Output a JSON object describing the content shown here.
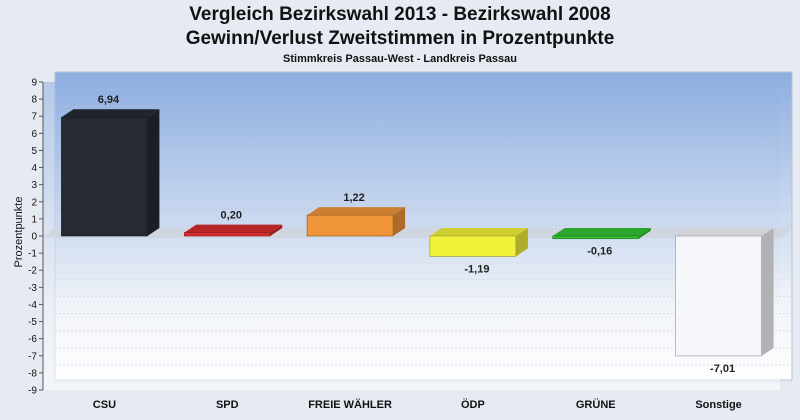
{
  "chart_data": {
    "type": "bar",
    "title": "Vergleich Bezirkswahl 2013 - Bezirkswahl 2008",
    "subtitle": "Gewinn/Verlust Zweitstimmen in Prozentpunkte",
    "caption": "Stimmkreis Passau-West - Landkreis Passau",
    "ylabel": "Prozentpunkte",
    "xlabel": "",
    "ylim": [
      -9,
      9
    ],
    "yticks": [
      "9",
      "8",
      "7",
      "6",
      "5",
      "4",
      "3",
      "2",
      "1",
      "0",
      "-1",
      "-2",
      "-3",
      "-4",
      "-5",
      "-6",
      "-7",
      "-8",
      "-9"
    ],
    "categories": [
      "CSU",
      "SPD",
      "FREIE WÄHLER",
      "ÖDP",
      "GRÜNE",
      "Sonstige"
    ],
    "values": [
      6.94,
      0.2,
      1.22,
      -1.19,
      -0.16,
      -7.01
    ],
    "value_labels": [
      "6,94",
      "0,20",
      "1,22",
      "-1,19",
      "-0,16",
      "-7,01"
    ],
    "colors": [
      "#262b33",
      "#d92b2b",
      "#f0953a",
      "#f2f23a",
      "#33c233",
      "#f6f7fa"
    ],
    "grid": true,
    "legend": "none"
  }
}
